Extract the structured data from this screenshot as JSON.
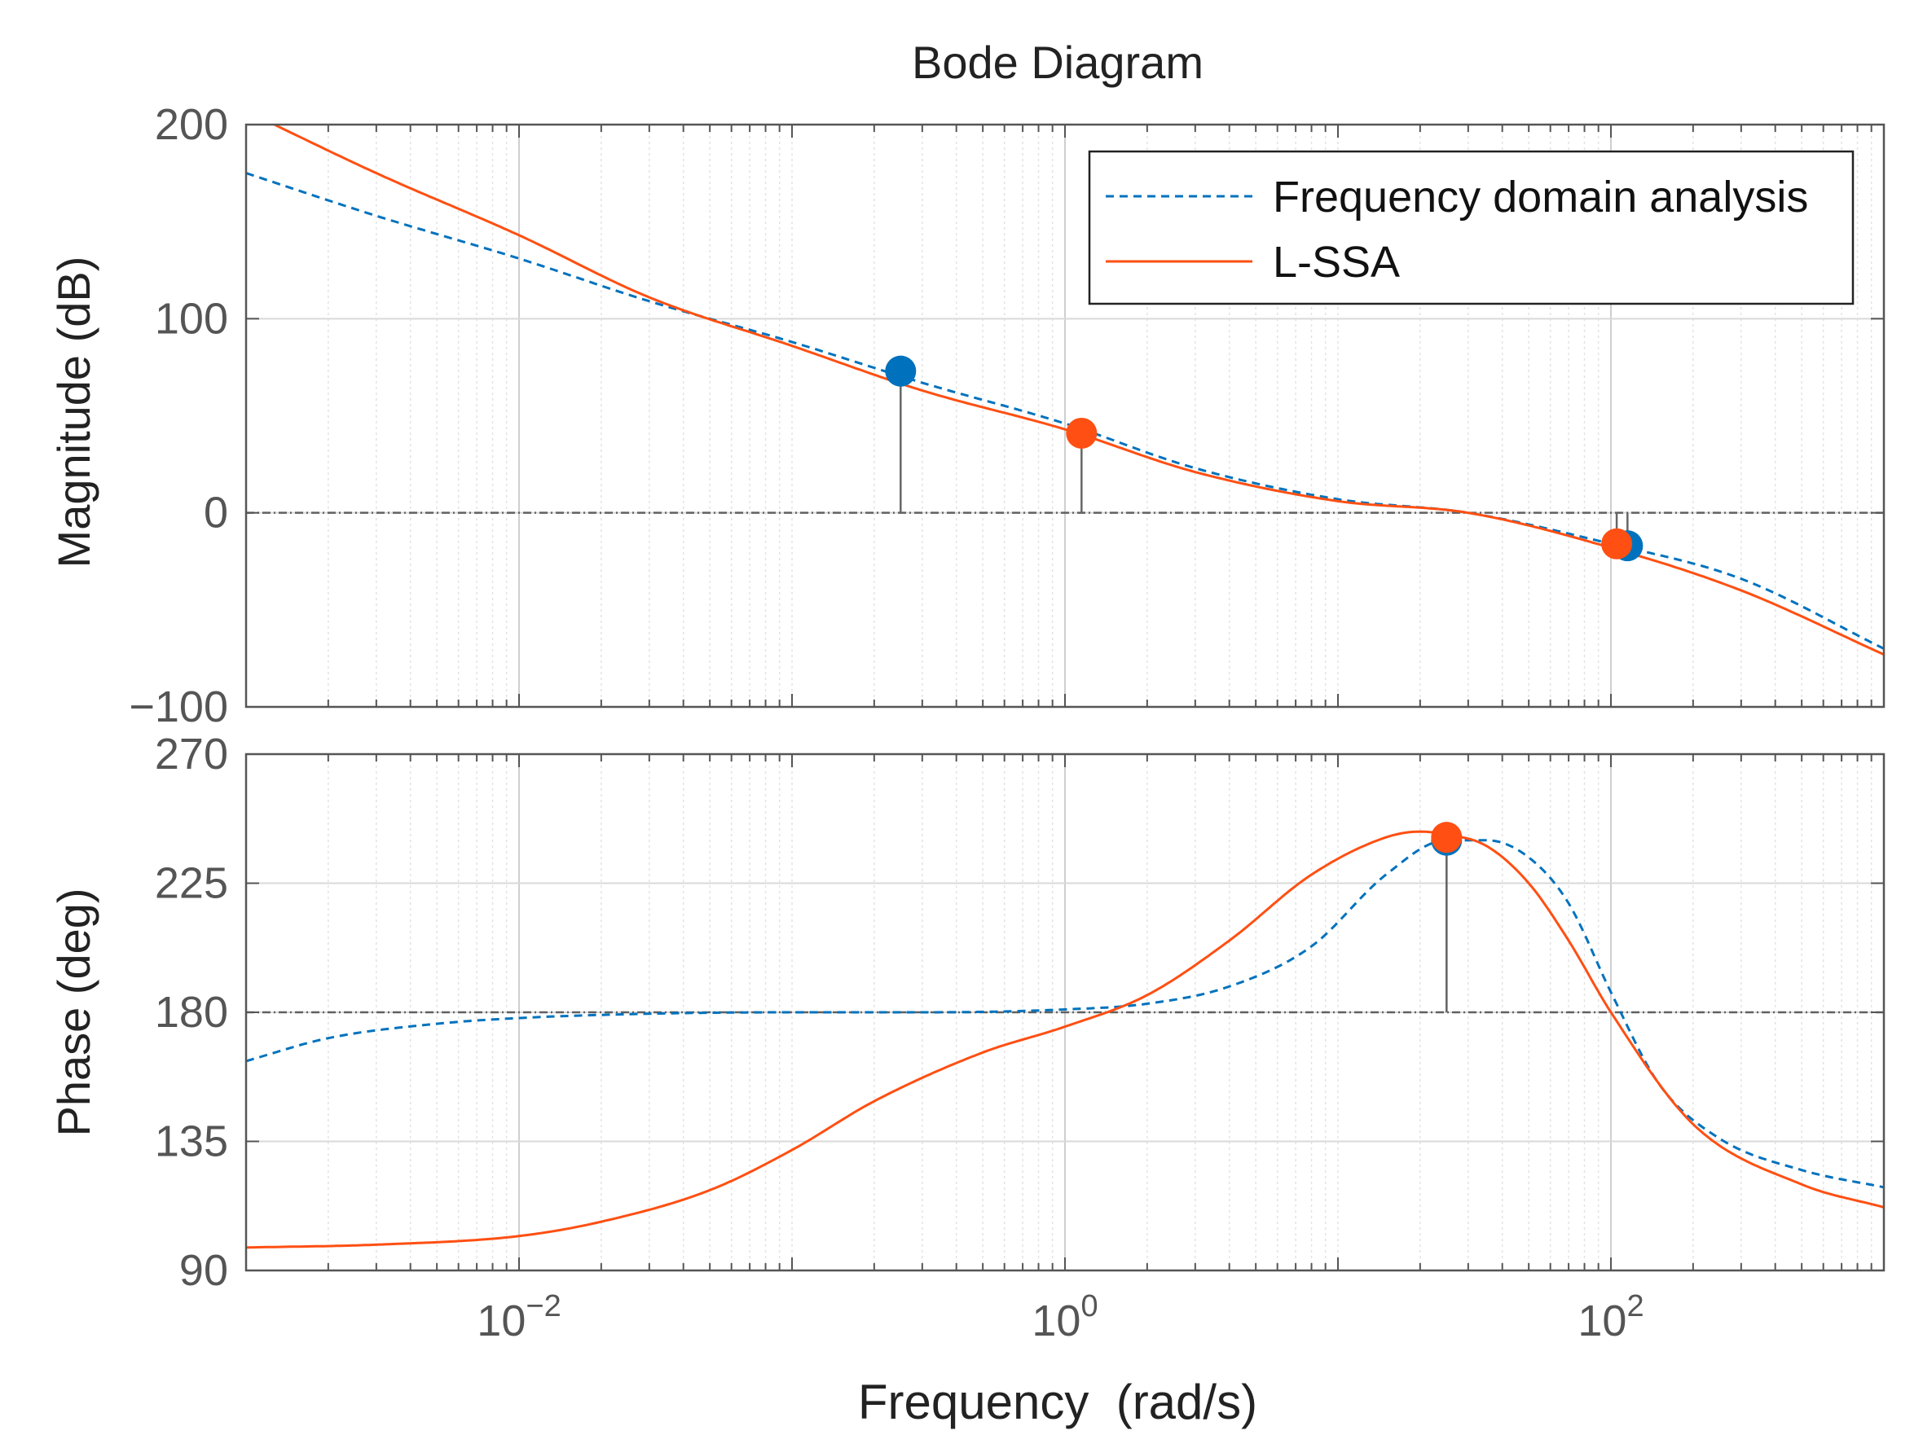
{
  "chart_data": {
    "type": "line",
    "title": "Bode Diagram",
    "xlabel": "Frequency  (rad/s)",
    "x_scale": "log",
    "xlim": [
      0.001,
      1000
    ],
    "x_tick_values": [
      0.01,
      1,
      100
    ],
    "x_tick_labels": [
      {
        "base": "10",
        "exp": "−2"
      },
      {
        "base": "10",
        "exp": "0"
      },
      {
        "base": "10",
        "exp": "2"
      }
    ],
    "grid": true,
    "legend": {
      "position": "top-right",
      "entries": [
        "Frequency domain analysis",
        "L-SSA"
      ]
    },
    "colors": {
      "frequency_domain": "#0072BD",
      "lssa": "#FF4F12",
      "axis": "#555555",
      "grid": "#d9d9d9",
      "reference": "#606060"
    },
    "panels": [
      {
        "id": "magnitude",
        "ylabel": "Magnitude (dB)",
        "ylim": [
          -100,
          200
        ],
        "yticks": [
          -100,
          0,
          100,
          200
        ],
        "ytick_labels": [
          "−100",
          "0",
          "100",
          "200"
        ],
        "reference_line": 0,
        "series": [
          {
            "name": "Frequency domain analysis",
            "style": "dashed",
            "color": "#0072BD",
            "x": [
              0.001,
              0.003,
              0.01,
              0.03,
              0.1,
              0.3,
              1,
              3,
              10,
              30,
              100,
              300,
              1000
            ],
            "y": [
              175,
              153,
              131,
              109,
              88,
              67,
              46,
              23,
              7,
              0,
              -16,
              -34,
              -70
            ]
          },
          {
            "name": "L-SSA",
            "style": "solid",
            "color": "#FF4F12",
            "x": [
              0.001,
              0.003,
              0.01,
              0.03,
              0.1,
              0.3,
              1,
              3,
              10,
              30,
              100,
              300,
              1000
            ],
            "y": [
              207,
              175,
              143,
              111,
              86,
              63,
              43,
              21,
              6,
              0,
              -18,
              -40,
              -73
            ]
          }
        ],
        "markers": [
          {
            "series": "Frequency domain analysis",
            "x": 0.25,
            "y": 73
          },
          {
            "series": "L-SSA",
            "x": 1.15,
            "y": 41
          },
          {
            "series": "Frequency domain analysis",
            "x": 115,
            "y": -17
          },
          {
            "series": "L-SSA",
            "x": 105,
            "y": -16
          }
        ]
      },
      {
        "id": "phase",
        "ylabel": "Phase (deg)",
        "ylim": [
          90,
          270
        ],
        "yticks": [
          90,
          135,
          180,
          225,
          270
        ],
        "ytick_labels": [
          "90",
          "135",
          "180",
          "225",
          "270"
        ],
        "reference_line": 180,
        "series": [
          {
            "name": "Frequency domain analysis",
            "style": "dashed",
            "color": "#0072BD",
            "x": [
              0.001,
              0.002,
              0.005,
              0.01,
              0.03,
              0.1,
              0.3,
              1,
              2,
              4,
              8,
              15,
              25,
              35,
              50,
              70,
              100,
              150,
              250,
              500,
              1000
            ],
            "y": [
              163,
              171,
              176,
              178,
              179.5,
              180,
              180,
              181,
              183,
              189,
              203,
              228,
              240,
              240,
              234,
              218,
              187,
              155,
              136,
              125,
              119
            ]
          },
          {
            "name": "L-SSA",
            "style": "solid",
            "color": "#FF4F12",
            "x": [
              0.001,
              0.003,
              0.01,
              0.02,
              0.05,
              0.1,
              0.2,
              0.5,
              1,
              2,
              4,
              8,
              15,
              20,
              25,
              35,
              50,
              70,
              100,
              200,
              500,
              1000
            ],
            "y": [
              98,
              99,
              102,
              107,
              118,
              132,
              149,
              166,
              175,
              186,
              205,
              228,
              241,
              243,
              242,
              238,
              225,
              205,
              180,
              141,
              120,
              112
            ]
          }
        ],
        "markers": [
          {
            "series": "Frequency domain analysis",
            "x": 25,
            "y": 240
          },
          {
            "series": "L-SSA",
            "x": 25,
            "y": 241
          }
        ]
      }
    ]
  }
}
